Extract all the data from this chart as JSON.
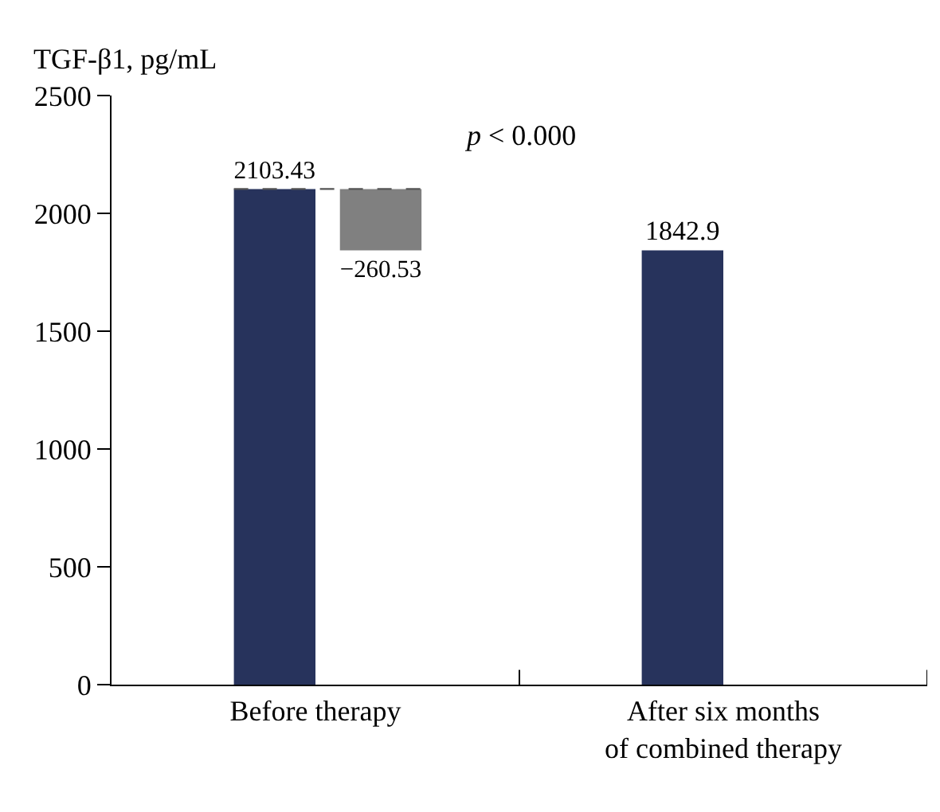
{
  "chart_data": {
    "type": "bar",
    "ylabel": "TGF-β1, pg/mL",
    "categories": [
      "Before therapy",
      "After six months\nof combined therapy"
    ],
    "series": [
      {
        "color": "#27335c",
        "values": [
          2103.43,
          1842.9
        ],
        "value_labels": [
          "2103.43",
          "1842.9"
        ]
      },
      {
        "color": "#808080",
        "values": [
          -260.53,
          null
        ],
        "base": [
          2103.43,
          null
        ],
        "value_labels": [
          "−260.53",
          null
        ]
      }
    ],
    "ylim": [
      0,
      2500
    ],
    "yticks": [
      0,
      500,
      1000,
      1500,
      2000,
      2500
    ],
    "ref_lines": [
      {
        "axis": "y",
        "value": 2103.43,
        "line_style": "dashed",
        "color": "#555555"
      }
    ],
    "annotations": [
      "p < 0.000"
    ]
  }
}
